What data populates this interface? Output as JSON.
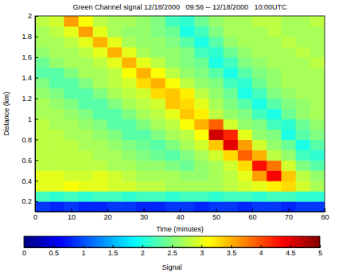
{
  "chart_data": {
    "type": "heatmap",
    "title": "Green Channel signal 12/18/2000   09:56 -- 12/18/2000   10:00UTC",
    "x_label": "Time (minutes)",
    "y_label": "Distance (km)",
    "xlim": [
      0,
      80
    ],
    "ylim": [
      0.1,
      2
    ],
    "xticks": [
      0,
      10,
      20,
      30,
      40,
      50,
      60,
      70,
      80
    ],
    "yticks": [
      0.2,
      0.4,
      0.6,
      0.8,
      1,
      1.2,
      1.4,
      1.6,
      1.8,
      2
    ],
    "x_bins": [
      0,
      4,
      8,
      12,
      16,
      20,
      24,
      28,
      32,
      36,
      40,
      44,
      48,
      52,
      56,
      60,
      64,
      68,
      72,
      76,
      80
    ],
    "y_bins": [
      0.1,
      0.2,
      0.3,
      0.4,
      0.5,
      0.6,
      0.7,
      0.8,
      0.9,
      1.0,
      1.1,
      1.2,
      1.3,
      1.4,
      1.5,
      1.6,
      1.7,
      1.8,
      1.9,
      2.0
    ],
    "cells": [
      [
        0.9,
        0.8,
        0.9,
        0.8,
        0.8,
        0.9,
        0.9,
        0.8,
        0.8,
        0.9,
        0.9,
        0.8,
        0.9,
        0.9,
        0.8,
        0.9,
        0.9,
        0.8,
        0.9,
        0.9
      ],
      [
        2.2,
        2.1,
        2.2,
        2.1,
        2.2,
        2.2,
        2.1,
        2.2,
        2.2,
        2.1,
        2.2,
        2.2,
        2.1,
        2.2,
        2.2,
        2.1,
        2.2,
        2.2,
        2.1,
        2.1
      ],
      [
        3.0,
        3.0,
        3.1,
        3.0,
        3.0,
        2.9,
        2.9,
        2.8,
        2.8,
        2.7,
        2.7,
        2.7,
        2.7,
        2.8,
        2.9,
        3.0,
        3.2,
        3.3,
        2.9,
        2.7
      ],
      [
        3.0,
        3.0,
        2.9,
        2.9,
        3.0,
        2.9,
        2.8,
        2.7,
        2.7,
        2.7,
        2.6,
        2.6,
        2.7,
        2.8,
        3.0,
        3.6,
        4.4,
        3.4,
        2.8,
        2.6
      ],
      [
        2.8,
        2.8,
        2.8,
        2.8,
        2.8,
        2.7,
        2.7,
        2.6,
        2.6,
        2.5,
        2.4,
        2.6,
        2.7,
        2.9,
        3.3,
        4.3,
        3.8,
        2.9,
        2.5,
        2.3
      ],
      [
        2.8,
        2.8,
        2.8,
        2.8,
        2.7,
        2.7,
        2.6,
        2.5,
        2.4,
        2.3,
        2.5,
        2.7,
        2.9,
        3.3,
        3.9,
        3.5,
        2.8,
        2.6,
        2.2,
        2.1
      ],
      [
        2.8,
        2.8,
        2.8,
        2.7,
        2.7,
        2.6,
        2.5,
        2.4,
        2.3,
        2.5,
        2.7,
        2.9,
        3.4,
        4.5,
        3.6,
        2.9,
        2.6,
        2.4,
        2.0,
        2.3
      ],
      [
        2.8,
        2.8,
        2.7,
        2.7,
        2.6,
        2.5,
        2.3,
        2.3,
        2.5,
        2.7,
        2.8,
        3.1,
        4.6,
        4.2,
        3.0,
        2.6,
        2.5,
        2.0,
        2.3,
        2.5
      ],
      [
        2.8,
        2.7,
        2.7,
        2.6,
        2.5,
        2.3,
        2.3,
        2.5,
        2.7,
        2.8,
        3.1,
        3.5,
        3.9,
        2.9,
        2.6,
        2.5,
        2.2,
        2.1,
        2.4,
        2.6
      ],
      [
        2.7,
        2.7,
        2.6,
        2.5,
        2.3,
        2.3,
        2.5,
        2.7,
        2.8,
        3.0,
        3.4,
        3.2,
        2.8,
        2.6,
        2.5,
        2.2,
        2.0,
        2.4,
        2.6,
        2.7
      ],
      [
        2.7,
        2.6,
        2.5,
        2.3,
        2.3,
        2.5,
        2.7,
        2.8,
        2.9,
        3.4,
        3.3,
        3.0,
        2.7,
        2.5,
        2.3,
        2.0,
        2.3,
        2.5,
        2.6,
        2.7
      ],
      [
        2.6,
        2.5,
        2.3,
        2.3,
        2.5,
        2.7,
        2.8,
        2.9,
        3.3,
        3.4,
        3.2,
        2.8,
        2.6,
        2.4,
        2.0,
        2.2,
        2.5,
        2.6,
        2.7,
        2.7
      ],
      [
        2.5,
        2.3,
        2.3,
        2.5,
        2.7,
        2.8,
        2.9,
        3.3,
        3.5,
        3.1,
        2.8,
        2.6,
        2.5,
        2.2,
        2.1,
        2.4,
        2.6,
        2.7,
        2.7,
        2.7
      ],
      [
        2.3,
        2.3,
        2.5,
        2.7,
        2.7,
        2.8,
        3.1,
        3.5,
        3.1,
        2.8,
        2.6,
        2.5,
        2.3,
        2.0,
        2.3,
        2.5,
        2.6,
        2.7,
        2.7,
        2.7
      ],
      [
        2.4,
        2.6,
        2.7,
        2.7,
        2.8,
        3.0,
        3.5,
        3.0,
        2.8,
        2.6,
        2.5,
        2.4,
        2.0,
        2.2,
        2.5,
        2.6,
        2.7,
        2.7,
        2.7,
        2.8
      ],
      [
        2.6,
        2.7,
        2.7,
        2.8,
        3.0,
        3.5,
        3.0,
        2.7,
        2.6,
        2.6,
        2.5,
        2.2,
        2.1,
        2.4,
        2.6,
        2.7,
        2.7,
        2.7,
        2.8,
        2.7
      ],
      [
        2.7,
        2.7,
        2.8,
        3.0,
        3.5,
        3.0,
        2.7,
        2.6,
        2.6,
        2.5,
        2.3,
        2.0,
        2.3,
        2.6,
        2.7,
        2.7,
        2.7,
        2.8,
        2.7,
        2.7
      ],
      [
        2.7,
        2.8,
        3.0,
        3.6,
        3.0,
        2.7,
        2.6,
        2.6,
        2.5,
        2.4,
        2.0,
        2.2,
        2.5,
        2.7,
        2.7,
        2.7,
        2.8,
        2.7,
        2.7,
        2.7
      ],
      [
        2.8,
        2.9,
        3.6,
        3.1,
        2.8,
        2.7,
        2.7,
        2.6,
        2.5,
        2.2,
        2.1,
        2.4,
        2.6,
        2.7,
        2.7,
        2.8,
        2.8,
        2.7,
        2.7,
        2.8
      ]
    ],
    "colorbar": {
      "label": "Signal",
      "range": [
        0,
        5
      ],
      "ticks": [
        0,
        0.5,
        1,
        1.5,
        2,
        2.5,
        3,
        3.5,
        4,
        4.5,
        5
      ]
    }
  }
}
